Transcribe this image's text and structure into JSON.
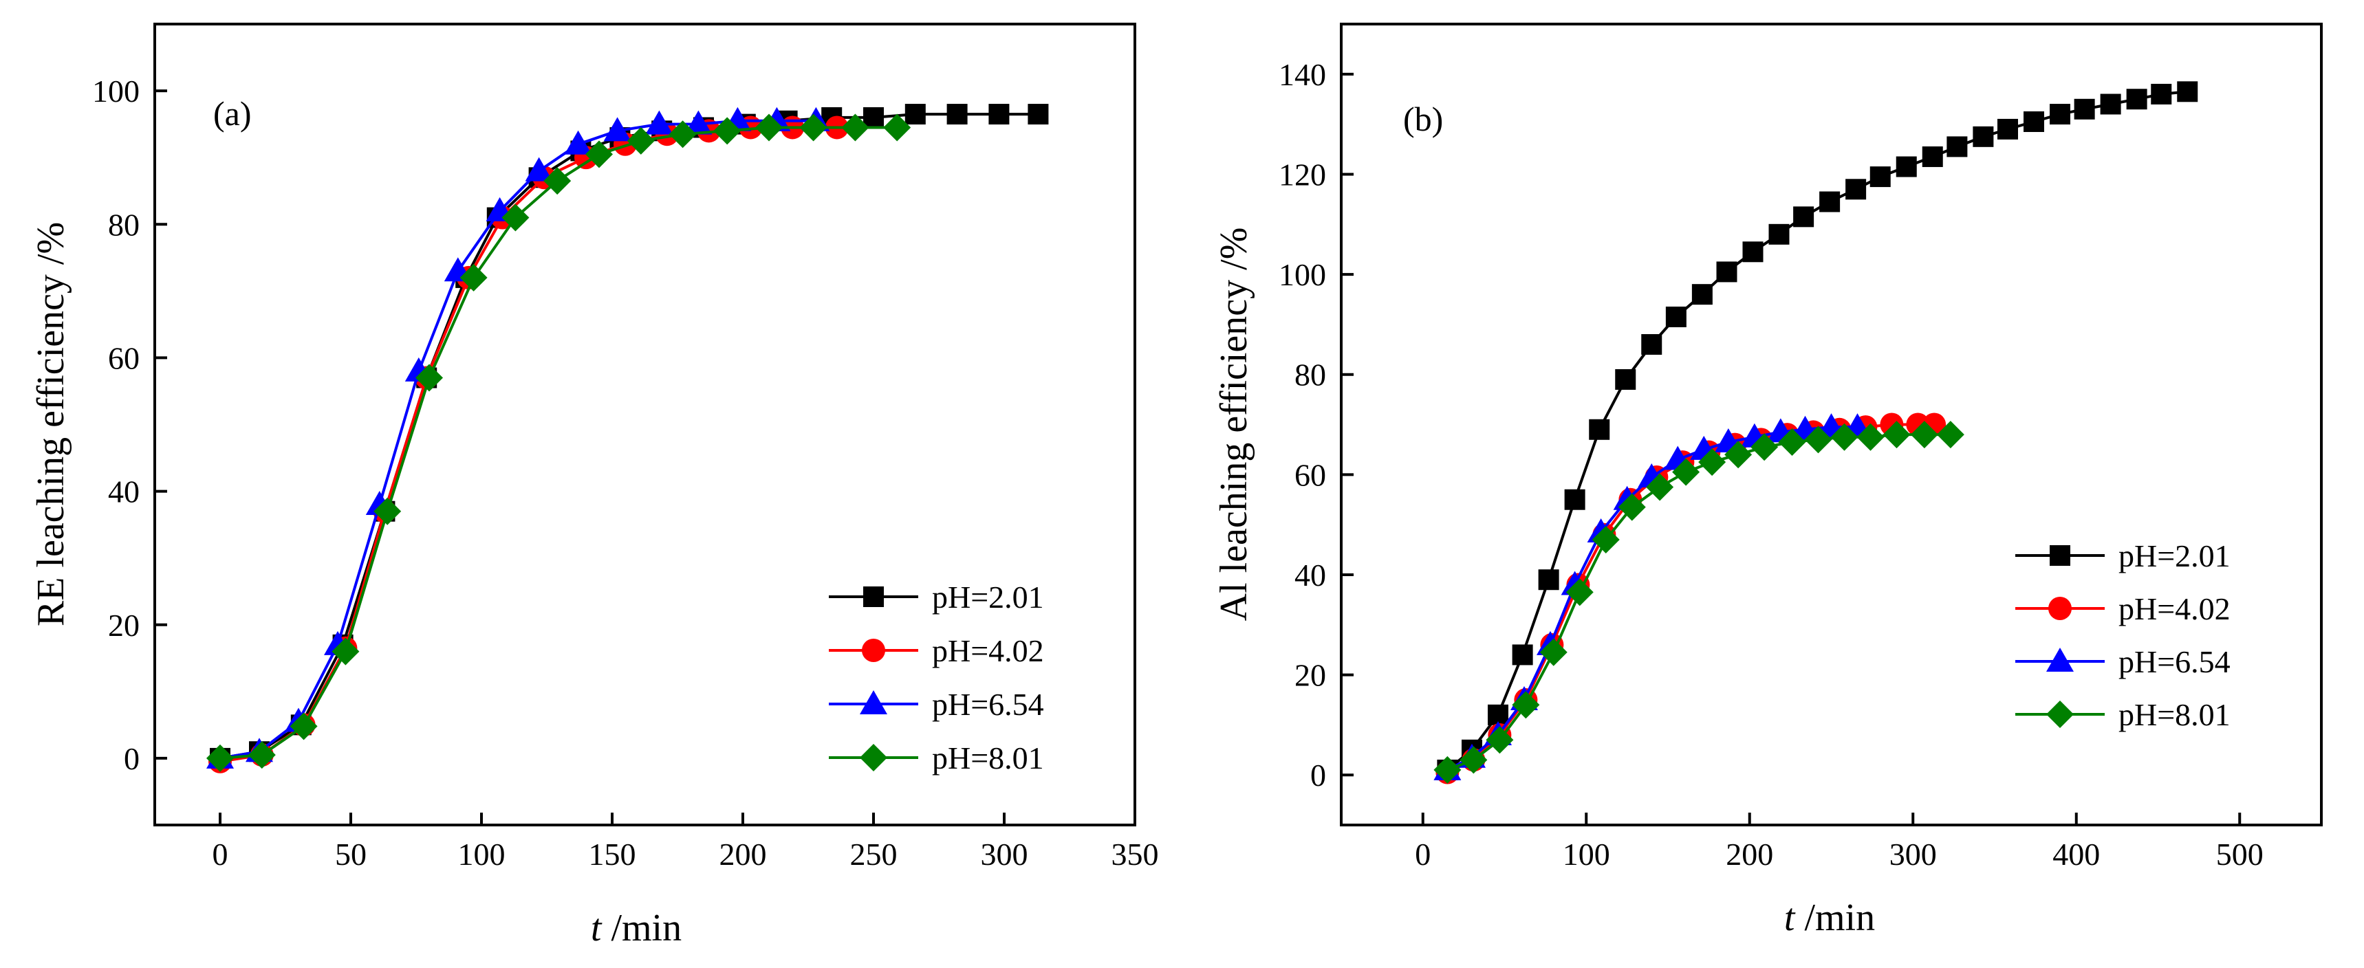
{
  "colors": {
    "pH=2.01": "#000000",
    "pH=4.02": "#ff0000",
    "pH=6.54": "#0000ff",
    "pH=8.01": "#008000"
  },
  "chart_data": [
    {
      "type": "line",
      "panel_label": "(a)",
      "xlabel": {
        "italic": "t",
        "rest": " /min"
      },
      "ylabel": "RE leaching efficiency /%",
      "xlim": [
        -25,
        350
      ],
      "ylim": [
        -10,
        110
      ],
      "xticks": [
        0,
        50,
        100,
        150,
        200,
        250,
        300,
        350
      ],
      "yticks": [
        0,
        20,
        40,
        60,
        80,
        100
      ],
      "legend_position": "bottom-right",
      "series": [
        {
          "name": "pH=2.01",
          "marker": "square",
          "x": [
            0,
            15,
            31,
            47,
            63,
            79,
            94,
            106,
            122,
            138,
            153,
            169,
            185,
            201,
            217,
            234,
            250,
            266,
            282,
            298,
            313
          ],
          "y": [
            0,
            1,
            5,
            17,
            37,
            57,
            72,
            81,
            87,
            91,
            93,
            94,
            94.5,
            95,
            95.5,
            96,
            96,
            96.5,
            96.5,
            96.5,
            96.5
          ]
        },
        {
          "name": "pH=4.02",
          "marker": "circle",
          "x": [
            0,
            16,
            32,
            48,
            63,
            79,
            95,
            108,
            124,
            140,
            155,
            171,
            187,
            203,
            219,
            236
          ],
          "y": [
            -0.5,
            0.5,
            5,
            16.5,
            37,
            57,
            72,
            81,
            87,
            90,
            92,
            93.5,
            94,
            94.5,
            94.5,
            94.5
          ]
        },
        {
          "name": "pH=6.54",
          "marker": "triangle",
          "x": [
            0,
            15,
            30,
            45,
            61,
            76,
            91,
            107,
            122,
            137,
            152,
            168,
            183,
            198,
            213,
            228
          ],
          "y": [
            0,
            1,
            5.5,
            17,
            38,
            58,
            73,
            82,
            88,
            92,
            94,
            95,
            95,
            95.5,
            95.5,
            95.5
          ]
        },
        {
          "name": "pH=8.01",
          "marker": "diamond",
          "x": [
            0,
            16,
            32,
            48,
            64,
            80,
            97,
            113,
            129,
            145,
            161,
            177,
            194,
            210,
            227,
            243,
            259
          ],
          "y": [
            0,
            0.5,
            4.8,
            16,
            37,
            57,
            72,
            81,
            86.5,
            90.5,
            92.5,
            93.5,
            94,
            94.5,
            94.5,
            94.5,
            94.5
          ]
        }
      ]
    },
    {
      "type": "line",
      "panel_label": "(b)",
      "xlabel": {
        "italic": "t",
        "rest": " /min"
      },
      "ylabel": "Al leaching efficiency /%",
      "xlim": [
        -50,
        550
      ],
      "ylim": [
        -10,
        150
      ],
      "xticks": [
        0,
        100,
        200,
        300,
        400,
        500
      ],
      "yticks": [
        0,
        20,
        40,
        60,
        80,
        100,
        120,
        140
      ],
      "legend_position": "bottom-right",
      "series": [
        {
          "name": "pH=2.01",
          "marker": "square",
          "x": [
            15,
            30,
            46,
            61,
            77,
            93,
            108,
            124,
            140,
            155,
            171,
            186,
            202,
            218,
            233,
            249,
            265,
            280,
            296,
            312,
            327,
            343,
            358,
            374,
            390,
            405,
            421,
            437,
            452,
            468
          ],
          "y": [
            1,
            5,
            12,
            24,
            39,
            55,
            69,
            79,
            86,
            91.5,
            96,
            100.5,
            104.5,
            108,
            111.5,
            114.5,
            117,
            119.5,
            121.5,
            123.5,
            125.5,
            127.5,
            129,
            130.5,
            132,
            133,
            134,
            135,
            136,
            136.5
          ]
        },
        {
          "name": "pH=4.02",
          "marker": "circle",
          "x": [
            15,
            31,
            47,
            63,
            79,
            95,
            111,
            127,
            143,
            159,
            175,
            191,
            207,
            223,
            239,
            255,
            271,
            287,
            303,
            313
          ],
          "y": [
            0.5,
            3,
            8,
            15,
            26,
            38,
            48,
            55,
            59.5,
            62.5,
            64.5,
            66,
            67,
            68,
            68.5,
            69,
            69.5,
            70,
            70,
            70
          ]
        },
        {
          "name": "pH=6.54",
          "marker": "triangle",
          "x": [
            15,
            30,
            46,
            62,
            78,
            93,
            109,
            125,
            140,
            156,
            172,
            187,
            203,
            219,
            234,
            250,
            266
          ],
          "y": [
            1,
            3.5,
            8,
            15,
            26,
            38,
            48.5,
            55,
            59.5,
            63,
            65,
            66.5,
            67.5,
            68.5,
            69,
            69.5,
            69.5
          ]
        },
        {
          "name": "pH=8.01",
          "marker": "diamond",
          "x": [
            15,
            31,
            47,
            63,
            80,
            96,
            112,
            128,
            145,
            161,
            177,
            193,
            209,
            226,
            242,
            258,
            274,
            290,
            307,
            323
          ],
          "y": [
            1,
            3,
            7,
            14,
            24.5,
            36.5,
            47,
            53.5,
            57.5,
            60.5,
            62.5,
            64,
            65.5,
            66.5,
            67,
            67.5,
            67.5,
            68,
            68,
            68
          ]
        }
      ]
    }
  ]
}
